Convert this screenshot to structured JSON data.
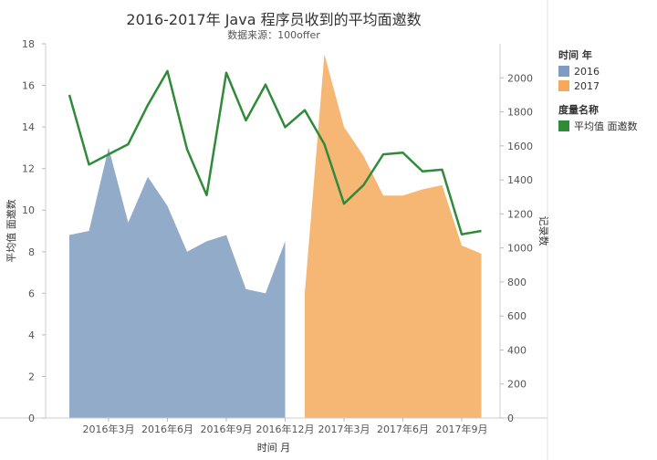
{
  "chart_data": {
    "type": "area",
    "title": "2016-2017年 Java 程序员收到的平均面邀数",
    "subtitle": "数据来源：100offer",
    "xlabel": "时间 月",
    "ylabel_left": "平均值 面邀数",
    "ylabel_right": "记录数",
    "y_left_lim": [
      0,
      18
    ],
    "y_left_ticks": [
      "0",
      "2",
      "4",
      "6",
      "8",
      "10",
      "12",
      "14",
      "16",
      "18"
    ],
    "y_right_lim": [
      0,
      2200
    ],
    "y_right_ticks": [
      "0",
      "200",
      "400",
      "600",
      "800",
      "1000",
      "1200",
      "1400",
      "1600",
      "1800",
      "2000"
    ],
    "x_tick_labels": [
      "2016年3月",
      "2016年6月",
      "2016年9月",
      "2016年12月",
      "2017年3月",
      "2017年6月",
      "2017年9月"
    ],
    "grid": false,
    "legend_position": "right",
    "legends": [
      {
        "title": "时间 年",
        "items": [
          {
            "label": "2016",
            "color": "#7e9cbf"
          },
          {
            "label": "2017",
            "color": "#f4a95c"
          }
        ]
      },
      {
        "title": "度量名称",
        "items": [
          {
            "label": "平均值 面邀数",
            "color": "#2f8b3a"
          }
        ]
      }
    ],
    "area_series": [
      {
        "name": "2016",
        "color": "#7e9cbf",
        "x": [
          "2016-01",
          "2016-02",
          "2016-03",
          "2016-04",
          "2016-05",
          "2016-06",
          "2016-07",
          "2016-08",
          "2016-09",
          "2016-10",
          "2016-11",
          "2016-12"
        ],
        "values": [
          8.8,
          9.0,
          13.0,
          9.4,
          11.6,
          10.2,
          8.0,
          8.5,
          8.8,
          6.2,
          6.0,
          8.5
        ]
      },
      {
        "name": "2017",
        "color": "#f4a95c",
        "x": [
          "2017-01",
          "2017-02",
          "2017-03",
          "2017-04",
          "2017-05",
          "2017-06",
          "2017-07",
          "2017-08",
          "2017-09",
          "2017-10"
        ],
        "values": [
          6.0,
          17.5,
          14.0,
          12.6,
          10.7,
          10.7,
          11.0,
          11.2,
          8.3,
          7.9
        ]
      }
    ],
    "line_series": {
      "name": "平均值 面邀数",
      "color": "#2f8b3a",
      "x": [
        "2016-01",
        "2016-02",
        "2016-03",
        "2016-04",
        "2016-05",
        "2016-06",
        "2016-07",
        "2016-08",
        "2016-09",
        "2016-10",
        "2016-11",
        "2016-12",
        "2017-01",
        "2017-02",
        "2017-03",
        "2017-04",
        "2017-05",
        "2017-06",
        "2017-07",
        "2017-08",
        "2017-09",
        "2017-10"
      ],
      "values": [
        1900,
        1490,
        1550,
        1610,
        1840,
        2040,
        1580,
        1310,
        2030,
        1750,
        1960,
        1710,
        1810,
        1610,
        1260,
        1370,
        1550,
        1560,
        1450,
        1460,
        1080,
        1100
      ]
    }
  }
}
